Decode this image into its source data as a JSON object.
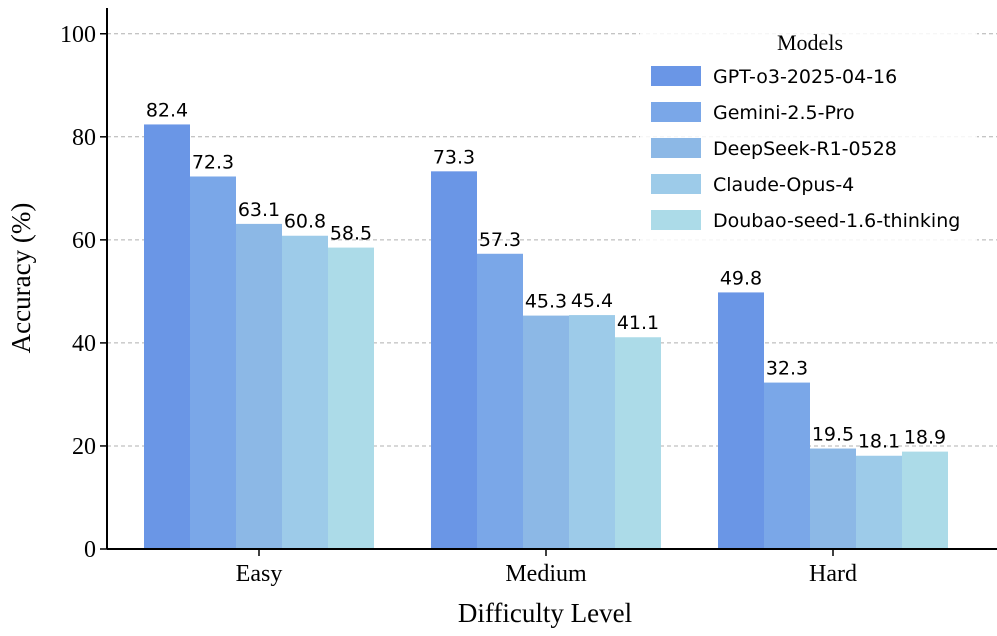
{
  "chart_data": {
    "type": "bar",
    "title": "",
    "xlabel": "Difficulty Level",
    "ylabel": "Accuracy (%)",
    "ylim": [
      0,
      105
    ],
    "yticks": [
      0,
      20,
      40,
      60,
      80,
      100
    ],
    "categories": [
      "Easy",
      "Medium",
      "Hard"
    ],
    "grid": "horizontal-dashed",
    "legend": {
      "title": "Models",
      "placement": "top-right"
    },
    "series": [
      {
        "name": "GPT-o3-2025-04-16",
        "values": [
          82.4,
          73.3,
          49.8
        ],
        "labels": [
          "82.4",
          "73.3",
          "49.8"
        ],
        "color": "#6a96e6"
      },
      {
        "name": "Gemini-2.5-Pro",
        "values": [
          72.3,
          57.3,
          32.3
        ],
        "labels": [
          "72.3",
          "57.3",
          "32.3"
        ],
        "color": "#7aa7e8"
      },
      {
        "name": "DeepSeek-R1-0528",
        "values": [
          63.1,
          45.3,
          19.5
        ],
        "labels": [
          "63.1",
          "45.3",
          "19.5"
        ],
        "color": "#8cb8e6"
      },
      {
        "name": "Claude-Opus-4",
        "values": [
          60.8,
          45.4,
          18.1
        ],
        "labels": [
          "60.8",
          "45.4",
          "18.1"
        ],
        "color": "#9dcbe9"
      },
      {
        "name": "Doubao-seed-1.6-thinking",
        "values": [
          58.5,
          41.1,
          18.9
        ],
        "labels": [
          "58.5",
          "41.1",
          "18.9"
        ],
        "color": "#acdbe8"
      }
    ]
  }
}
